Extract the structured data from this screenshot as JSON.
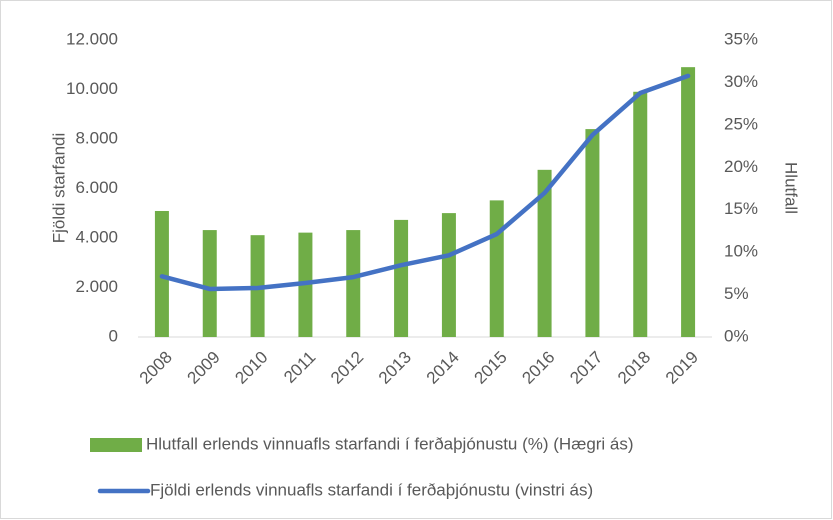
{
  "chart_data": {
    "type": "bar-line",
    "categories": [
      "2008",
      "2009",
      "2010",
      "2011",
      "2012",
      "2013",
      "2014",
      "2015",
      "2016",
      "2017",
      "2018",
      "2019"
    ],
    "series": [
      {
        "name": "Hlutfall erlends vinnuafls starfandi í ferðaþjónustu (%) (Hægri ás)",
        "type": "bar",
        "axis": "y2",
        "color": "#70ad47",
        "values": [
          14.85,
          12.6,
          12.0,
          12.3,
          12.6,
          13.8,
          14.6,
          16.1,
          19.7,
          24.5,
          28.9,
          31.8
        ]
      },
      {
        "name": "Fjöldi erlends vinnuafls starfandi í ferðaþjónustu (vinstri ás)",
        "type": "line",
        "axis": "y",
        "color": "#4472c4",
        "values": [
          2450,
          1940,
          1980,
          2180,
          2420,
          2900,
          3300,
          4160,
          5820,
          8160,
          9860,
          10550
        ]
      }
    ],
    "ylabel": "Fjöldi starfandi",
    "y2label": "Hlutfall",
    "ylim": [
      0,
      12000
    ],
    "yticks": [
      0,
      {
        "value": 2000,
        "label": "2.000"
      },
      {
        "value": 4000,
        "label": "4.000"
      },
      {
        "value": 6000,
        "label": "6.000"
      },
      {
        "value": 8000,
        "label": "8.000"
      },
      {
        "value": 10000,
        "label": "10.000"
      },
      {
        "value": 12000,
        "label": "12.000"
      }
    ],
    "y2lim": [
      0,
      35
    ],
    "y2ticks": [
      {
        "value": 0,
        "label": "0%"
      },
      {
        "value": 5,
        "label": "5%"
      },
      {
        "value": 10,
        "label": "10%"
      },
      {
        "value": 15,
        "label": "15%"
      },
      {
        "value": 20,
        "label": "20%"
      },
      {
        "value": 25,
        "label": "25%"
      },
      {
        "value": 30,
        "label": "30%"
      },
      {
        "value": 35,
        "label": "35%"
      }
    ],
    "grid": false,
    "legend": "bottom"
  }
}
